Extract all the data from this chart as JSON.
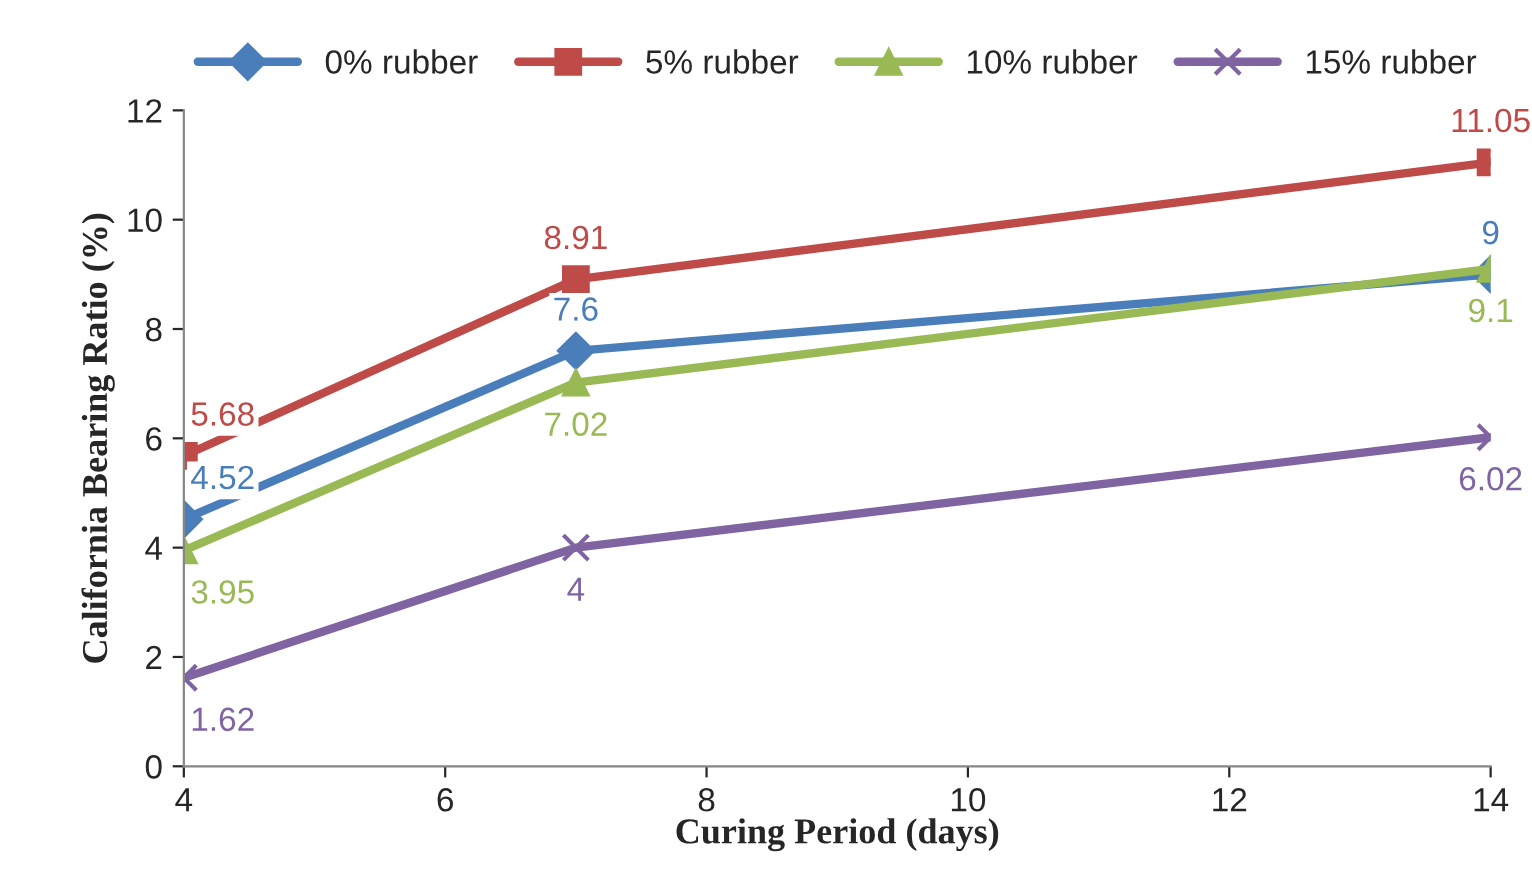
{
  "chart_data": {
    "type": "line",
    "xlabel": "Curing Period (days)",
    "ylabel": "California Bearing Ratio (%)",
    "x": [
      4,
      7,
      14
    ],
    "series": [
      {
        "name": "0% rubber",
        "color": "#4a7ebb",
        "marker": "diamond",
        "values": [
          4.52,
          7.6,
          9
        ]
      },
      {
        "name": "5% rubber",
        "color": "#be4b48",
        "marker": "square",
        "values": [
          5.68,
          8.91,
          11.05
        ]
      },
      {
        "name": "10% rubber",
        "color": "#98b954",
        "marker": "triangle",
        "values": [
          3.95,
          7.02,
          9.1
        ]
      },
      {
        "name": "15% rubber",
        "color": "#8064a2",
        "marker": "cross",
        "values": [
          1.62,
          4,
          6.02
        ]
      }
    ],
    "xlim": [
      4,
      14
    ],
    "xticks": [
      4,
      6,
      8,
      10,
      12,
      14
    ],
    "ylim": [
      0,
      12
    ],
    "yticks": [
      0,
      2,
      4,
      6,
      8,
      10,
      12
    ],
    "data_labels": true,
    "legend": "top",
    "grid": false,
    "line_style": "solid"
  }
}
